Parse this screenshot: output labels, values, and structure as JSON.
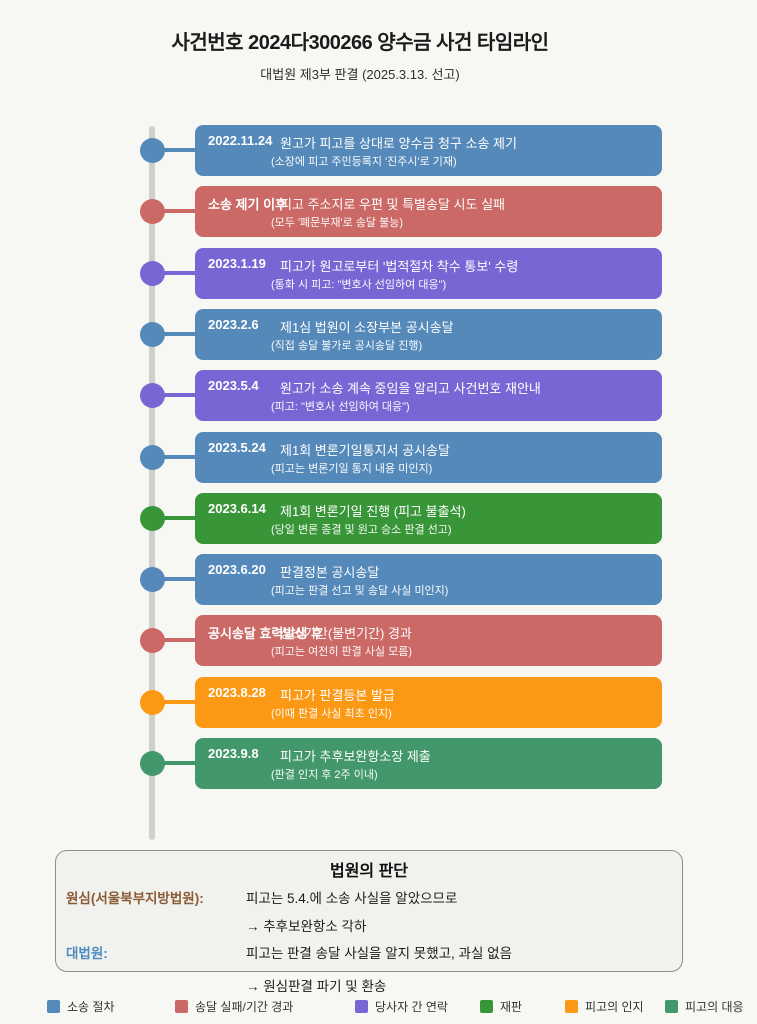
{
  "header": {
    "title": "사건번호 2024다300266 양수금 사건 타임라인",
    "subtitle": "대법원 제3부 판결 (2025.3.13. 선고)"
  },
  "palette": {
    "blue": "#5589ba",
    "red": "#cb6966",
    "purple": "#7667d4",
    "green": "#389638",
    "orange": "#fb9915",
    "seagreen": "#42986b"
  },
  "timeline": {
    "events": [
      {
        "date": "2022.11.24",
        "desc": "원고가 피고를 상대로 양수금 청구 소송 제기",
        "sub": "(소장에 피고 주민등록지 '진주시'로 기재)",
        "color": "blue"
      },
      {
        "date": "소송 제기 이후",
        "desc": "피고 주소지로 우편 및 특별송달 시도 실패",
        "sub": "(모두 '폐문부재'로 송달 불능)",
        "color": "red"
      },
      {
        "date": "2023.1.19",
        "desc": "피고가 원고로부터 '법적절차 착수 통보' 수령",
        "sub": "(통화 시 피고: \"변호사 선임하여 대응\")",
        "color": "purple"
      },
      {
        "date": "2023.2.6",
        "desc": "제1심 법원이 소장부본 공시송달",
        "sub": "(직접 송달 불가로 공시송달 진행)",
        "color": "blue"
      },
      {
        "date": "2023.5.4",
        "desc": "원고가 소송 계속 중임을 알리고 사건번호 재안내",
        "sub": "(피고: \"변호사 선임하여 대응\")",
        "color": "purple"
      },
      {
        "date": "2023.5.24",
        "desc": "제1회 변론기일통지서 공시송달",
        "sub": "(피고는 변론기일 통지 내용 미인지)",
        "color": "blue"
      },
      {
        "date": "2023.6.14",
        "desc": "제1회 변론기일 진행 (피고 불출석)",
        "sub": "(당일 변론 종결 및 원고 승소 판결 선고)",
        "color": "green"
      },
      {
        "date": "2023.6.20",
        "desc": "판결정본 공시송달",
        "sub": "(피고는 판결 선고 및 송달 사실 미인지)",
        "color": "blue"
      },
      {
        "date": "공시송달 효력발생 후",
        "desc": "상소기간(불변기간) 경과",
        "sub": "(피고는 여전히 판결 사실 모름)",
        "color": "red"
      },
      {
        "date": "2023.8.28",
        "desc": "피고가 판결등본 발급",
        "sub": "(이때 판결 사실 최초 인지)",
        "color": "orange"
      },
      {
        "date": "2023.9.8",
        "desc": "피고가 추후보완항소장 제출",
        "sub": "(판결 인지 후 2주 이내)",
        "color": "seagreen"
      }
    ]
  },
  "judgment": {
    "title": "법원의 판단",
    "rows": [
      {
        "label": "원심(서울북부지방법원):",
        "label_color": "#8a5a35",
        "line1": "피고는 5.4.에 소송 사실을 알았으므로",
        "line2": "→ 추후보완항소 각하"
      },
      {
        "label": "대법원:",
        "label_color": "#4e8cbe",
        "line1": "피고는 판결 송달 사실을 알지 못했고, 과실 없음",
        "line2": "→ 원심판결 파기 및 환송"
      }
    ]
  },
  "legend": {
    "items": [
      {
        "label": "소송 절차",
        "color": "blue"
      },
      {
        "label": "송달 실패/기간 경과",
        "color": "red"
      },
      {
        "label": "당사자 간 연락",
        "color": "purple"
      },
      {
        "label": "재판",
        "color": "green"
      },
      {
        "label": "피고의 인지",
        "color": "orange"
      },
      {
        "label": "피고의 대응",
        "color": "seagreen"
      }
    ]
  }
}
